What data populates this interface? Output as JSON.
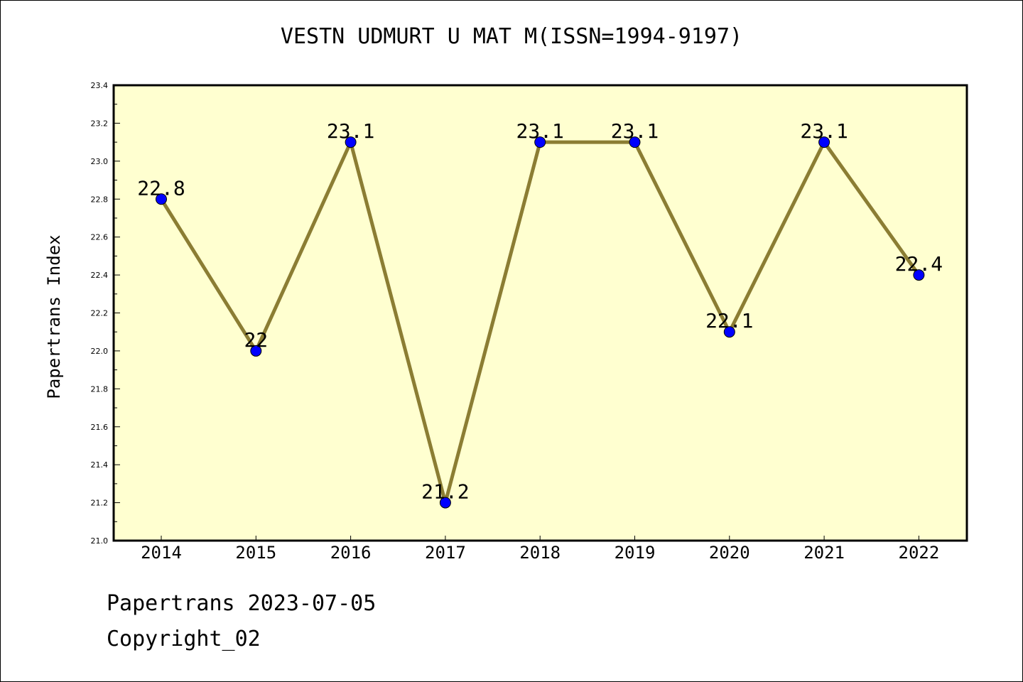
{
  "chart_data": {
    "type": "line",
    "title": "VESTN UDMURT U MAT M(ISSN=1994-9197)",
    "xlabel": "",
    "ylabel": "Papertrans Index",
    "categories": [
      "2014",
      "2015",
      "2016",
      "2017",
      "2018",
      "2019",
      "2020",
      "2021",
      "2022"
    ],
    "series": [
      {
        "values": [
          22.8,
          22.0,
          23.1,
          21.2,
          23.1,
          23.1,
          22.1,
          23.1,
          22.4
        ],
        "data_labels": [
          "22.8",
          "22",
          "23.1",
          "21.2",
          "23.1",
          "23.1",
          "22.1",
          "23.1",
          "22.4"
        ]
      }
    ],
    "ylim": [
      21.0,
      23.4
    ],
    "yticks": [
      "21.0",
      "21.2",
      "21.4",
      "21.6",
      "21.8",
      "22.0",
      "22.2",
      "22.4",
      "22.6",
      "22.8",
      "23.0",
      "23.2",
      "23.4"
    ],
    "grid": false,
    "legend": "none"
  },
  "footer": {
    "date_text": "Papertrans 2023-07-05",
    "copyright_text": "Copyright_02"
  },
  "colors": {
    "plot_background": "#ffffd0",
    "line": "#8b7d33",
    "marker": "#0000ff"
  }
}
